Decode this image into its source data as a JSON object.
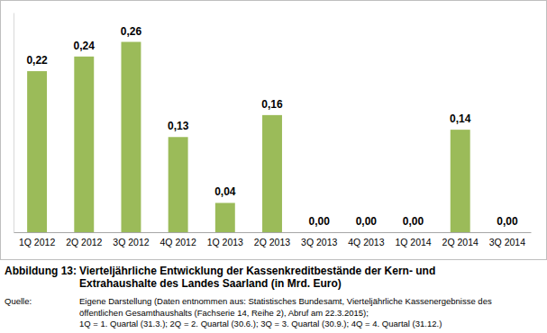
{
  "chart_data": {
    "type": "bar",
    "title_label": "Abbildung 13:",
    "title": [
      "Vierteljährliche Entwicklung der Kassenkreditbestände der Kern- und",
      "Extrahaushalte des Landes Saarland (in Mrd. Euro)"
    ],
    "source_label": "Quelle:",
    "source": [
      "Eigene Darstellung (Daten entnommen aus: Statistisches Bundesamt, Vierteljährliche Kassenergebnisse des",
      "öffentlichen Gesamthaushalts (Fachserie 14, Reihe 2), Abruf am 22.3.2015);",
      "1Q = 1. Quartal (31.3.);  2Q = 2. Quartal (30.6.);  3Q = 3. Quartal (30.9.);  4Q = 4. Quartal (31.12.)"
    ],
    "categories": [
      "1Q 2012",
      "2Q 2012",
      "3Q 2012",
      "4Q 2012",
      "1Q 2013",
      "2Q 2013",
      "3Q 2013",
      "4Q 2013",
      "1Q 2014",
      "2Q 2014",
      "3Q 2014"
    ],
    "values": [
      0.22,
      0.24,
      0.26,
      0.13,
      0.04,
      0.16,
      0,
      0,
      0,
      0.14,
      0
    ],
    "value_labels": [
      "0,22",
      "0,24",
      "0,26",
      "0,13",
      "0,04",
      "0,16",
      "0,00",
      "0,00",
      "0,00",
      "0,14",
      "0,00"
    ],
    "color": "#9bbb59",
    "ylim": [
      0,
      0.3
    ],
    "grid": false,
    "data_labels": true,
    "tick_labels": "x"
  }
}
